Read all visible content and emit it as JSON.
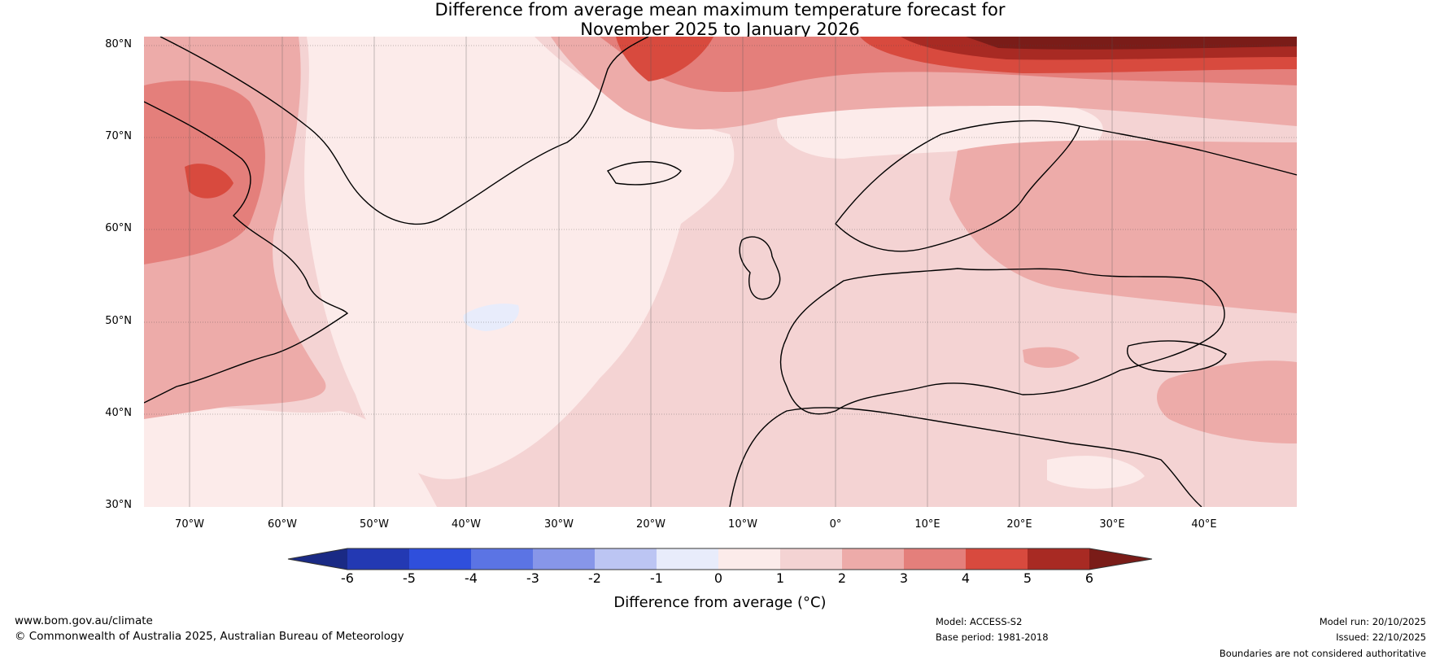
{
  "title_line1": "Difference from average mean maximum temperature forecast for",
  "title_line2": "November 2025 to January 2026",
  "lat_labels": [
    "80°N",
    "70°N",
    "60°N",
    "50°N",
    "40°N",
    "30°N"
  ],
  "lon_labels": [
    "70°W",
    "60°W",
    "50°W",
    "40°W",
    "30°W",
    "20°W",
    "10°W",
    "0°",
    "10°E",
    "20°E",
    "30°E",
    "40°E"
  ],
  "colorbar": {
    "ticks": [
      "-6",
      "-5",
      "-4",
      "-3",
      "-2",
      "-1",
      "0",
      "1",
      "2",
      "3",
      "4",
      "5",
      "6"
    ],
    "label": "Difference from average (°C)",
    "colors": [
      "#1a2a85",
      "#2339b3",
      "#2f4fdc",
      "#5b74e4",
      "#8796e9",
      "#bcc5f3",
      "#e8ecfb",
      "#fcebea",
      "#f4d3d3",
      "#edaba9",
      "#e47f7b",
      "#d84a3e",
      "#a82a23",
      "#7a1c18"
    ]
  },
  "footer": {
    "website": "www.bom.gov.au/climate",
    "copyright": "© Commonwealth of Australia 2025, Australian Bureau of Meteorology",
    "model": "Model: ACCESS-S2",
    "base_period": "Base period: 1981-2018",
    "model_run": "Model run: 20/10/2025",
    "issued": "Issued: 22/10/2025",
    "disclaimer": "Boundaries are not considered authoritative"
  }
}
